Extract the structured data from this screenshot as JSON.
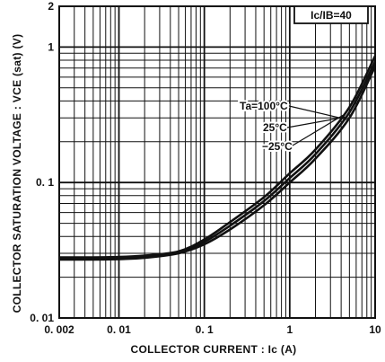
{
  "chart_data": {
    "type": "line",
    "xlabel": "COLLECTOR CURRENT : Ic (A)",
    "ylabel": "COLLECTOR SATURATION VOLTAGE : VCE (sat) (V)",
    "x_scale": "log",
    "y_scale": "log",
    "xlim": [
      0.002,
      10
    ],
    "ylim": [
      0.01,
      2
    ],
    "x_ticks": [
      0.002,
      0.01,
      0.1,
      1,
      10
    ],
    "x_tick_labels": [
      "0. 002",
      "0. 01",
      "0. 1",
      "1",
      "10"
    ],
    "y_ticks": [
      0.01,
      0.1,
      1,
      2
    ],
    "y_tick_labels": [
      "0. 01",
      "0. 1",
      "1",
      "2"
    ],
    "grid": true,
    "legend_box": "Ic/IB=40",
    "legend_position": "top-right",
    "series": [
      {
        "name": "Ta=100°C",
        "x": [
          0.002,
          0.005,
          0.01,
          0.02,
          0.05,
          0.1,
          0.2,
          0.5,
          1,
          2,
          5,
          10
        ],
        "y": [
          0.027,
          0.027,
          0.0272,
          0.0278,
          0.03,
          0.035,
          0.045,
          0.068,
          0.1,
          0.15,
          0.3,
          0.72
        ]
      },
      {
        "name": "25°C",
        "x": [
          0.002,
          0.005,
          0.01,
          0.02,
          0.05,
          0.1,
          0.2,
          0.5,
          1,
          2,
          5,
          10
        ],
        "y": [
          0.0275,
          0.0275,
          0.0277,
          0.0283,
          0.0305,
          0.0365,
          0.048,
          0.073,
          0.108,
          0.162,
          0.33,
          0.78
        ]
      },
      {
        "name": "−25°C",
        "x": [
          0.002,
          0.005,
          0.01,
          0.02,
          0.05,
          0.1,
          0.2,
          0.5,
          1,
          2,
          5,
          10
        ],
        "y": [
          0.028,
          0.028,
          0.0282,
          0.0289,
          0.031,
          0.038,
          0.051,
          0.078,
          0.117,
          0.175,
          0.36,
          0.86
        ]
      }
    ]
  },
  "colors": {
    "line": "#111111",
    "grid": "#111111",
    "background": "#ffffff"
  }
}
